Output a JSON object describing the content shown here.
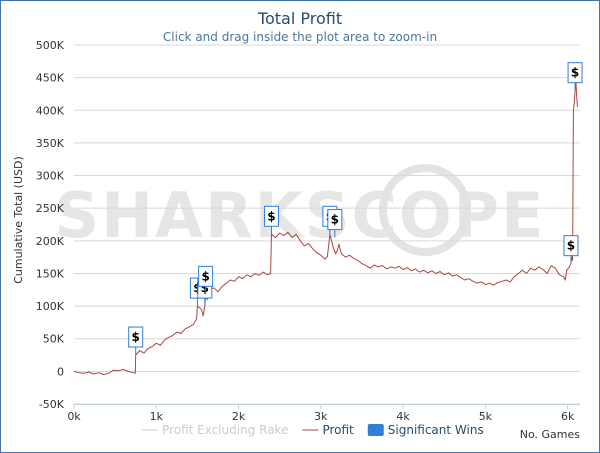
{
  "chart_data": {
    "type": "line",
    "title": "Total Profit",
    "subtitle": "Click and drag inside the plot area to zoom-in",
    "ylabel": "Cumulative Total (USD)",
    "xlabel": "No. Games",
    "watermark": "SHARKSCOPE",
    "xlim": [
      0,
      6150
    ],
    "ylim": [
      -50000,
      500000
    ],
    "x_ticks": [
      {
        "value": 0,
        "label": "0k"
      },
      {
        "value": 1000,
        "label": "1k"
      },
      {
        "value": 2000,
        "label": "2k"
      },
      {
        "value": 3000,
        "label": "3k"
      },
      {
        "value": 4000,
        "label": "4k"
      },
      {
        "value": 5000,
        "label": "5k"
      },
      {
        "value": 6000,
        "label": "6k"
      }
    ],
    "y_ticks": [
      {
        "value": -50000,
        "label": "-50K"
      },
      {
        "value": 0,
        "label": "0"
      },
      {
        "value": 50000,
        "label": "50K"
      },
      {
        "value": 100000,
        "label": "100K"
      },
      {
        "value": 150000,
        "label": "150K"
      },
      {
        "value": 200000,
        "label": "200K"
      },
      {
        "value": 250000,
        "label": "250K"
      },
      {
        "value": 300000,
        "label": "300K"
      },
      {
        "value": 350000,
        "label": "350K"
      },
      {
        "value": 400000,
        "label": "400K"
      },
      {
        "value": 450000,
        "label": "450K"
      },
      {
        "value": 500000,
        "label": "500K"
      }
    ],
    "legend": [
      {
        "name": "Profit Excluding Rake",
        "symbol": "line",
        "color": "#cccccc",
        "text_color": "#cccccc"
      },
      {
        "name": "Profit",
        "symbol": "line",
        "color": "#aa4643",
        "text_color": "#274b6d"
      },
      {
        "name": "Significant Wins",
        "symbol": "box",
        "color": "#2f7ed8",
        "text_color": "#274b6d"
      }
    ],
    "series": [
      {
        "name": "Profit",
        "color": "#aa4643",
        "points": [
          [
            0,
            0
          ],
          [
            60,
            -2000
          ],
          [
            120,
            -3000
          ],
          [
            180,
            -1000
          ],
          [
            240,
            -4000
          ],
          [
            300,
            -2000
          ],
          [
            360,
            -5000
          ],
          [
            420,
            -3000
          ],
          [
            480,
            2000
          ],
          [
            540,
            1000
          ],
          [
            600,
            3000
          ],
          [
            660,
            0
          ],
          [
            720,
            -2000
          ],
          [
            745,
            -3000
          ],
          [
            750,
            25000
          ],
          [
            800,
            32000
          ],
          [
            850,
            28000
          ],
          [
            900,
            35000
          ],
          [
            950,
            38000
          ],
          [
            1000,
            43000
          ],
          [
            1050,
            40000
          ],
          [
            1100,
            48000
          ],
          [
            1150,
            52000
          ],
          [
            1200,
            55000
          ],
          [
            1250,
            60000
          ],
          [
            1300,
            58000
          ],
          [
            1350,
            65000
          ],
          [
            1400,
            68000
          ],
          [
            1450,
            72000
          ],
          [
            1490,
            80000
          ],
          [
            1500,
            100000
          ],
          [
            1550,
            95000
          ],
          [
            1570,
            85000
          ],
          [
            1590,
            100000
          ],
          [
            1600,
            118000
          ],
          [
            1620,
            110000
          ],
          [
            1650,
            125000
          ],
          [
            1700,
            128000
          ],
          [
            1750,
            122000
          ],
          [
            1800,
            130000
          ],
          [
            1850,
            135000
          ],
          [
            1900,
            140000
          ],
          [
            1950,
            138000
          ],
          [
            2000,
            145000
          ],
          [
            2050,
            142000
          ],
          [
            2100,
            148000
          ],
          [
            2150,
            145000
          ],
          [
            2200,
            150000
          ],
          [
            2250,
            147000
          ],
          [
            2300,
            152000
          ],
          [
            2350,
            148000
          ],
          [
            2390,
            150000
          ],
          [
            2400,
            210000
          ],
          [
            2450,
            205000
          ],
          [
            2500,
            212000
          ],
          [
            2550,
            208000
          ],
          [
            2600,
            213000
          ],
          [
            2650,
            205000
          ],
          [
            2700,
            210000
          ],
          [
            2750,
            200000
          ],
          [
            2800,
            192000
          ],
          [
            2850,
            196000
          ],
          [
            2900,
            188000
          ],
          [
            2950,
            182000
          ],
          [
            3000,
            178000
          ],
          [
            3050,
            172000
          ],
          [
            3080,
            176000
          ],
          [
            3110,
            210000
          ],
          [
            3150,
            190000
          ],
          [
            3180,
            180000
          ],
          [
            3200,
            185000
          ],
          [
            3220,
            195000
          ],
          [
            3250,
            180000
          ],
          [
            3300,
            175000
          ],
          [
            3350,
            178000
          ],
          [
            3400,
            173000
          ],
          [
            3450,
            170000
          ],
          [
            3500,
            165000
          ],
          [
            3550,
            162000
          ],
          [
            3600,
            158000
          ],
          [
            3650,
            163000
          ],
          [
            3700,
            160000
          ],
          [
            3750,
            162000
          ],
          [
            3800,
            157000
          ],
          [
            3850,
            160000
          ],
          [
            3900,
            158000
          ],
          [
            3950,
            161000
          ],
          [
            4000,
            156000
          ],
          [
            4050,
            159000
          ],
          [
            4100,
            154000
          ],
          [
            4150,
            157000
          ],
          [
            4200,
            152000
          ],
          [
            4250,
            155000
          ],
          [
            4300,
            151000
          ],
          [
            4350,
            154000
          ],
          [
            4400,
            150000
          ],
          [
            4450,
            153000
          ],
          [
            4500,
            148000
          ],
          [
            4550,
            151000
          ],
          [
            4600,
            146000
          ],
          [
            4650,
            148000
          ],
          [
            4700,
            144000
          ],
          [
            4750,
            140000
          ],
          [
            4800,
            142000
          ],
          [
            4850,
            138000
          ],
          [
            4900,
            135000
          ],
          [
            4950,
            137000
          ],
          [
            5000,
            133000
          ],
          [
            5050,
            135000
          ],
          [
            5100,
            132000
          ],
          [
            5150,
            136000
          ],
          [
            5200,
            138000
          ],
          [
            5250,
            140000
          ],
          [
            5300,
            137000
          ],
          [
            5350,
            145000
          ],
          [
            5400,
            150000
          ],
          [
            5450,
            155000
          ],
          [
            5500,
            150000
          ],
          [
            5550,
            158000
          ],
          [
            5600,
            155000
          ],
          [
            5650,
            160000
          ],
          [
            5700,
            156000
          ],
          [
            5750,
            150000
          ],
          [
            5800,
            162000
          ],
          [
            5850,
            158000
          ],
          [
            5900,
            148000
          ],
          [
            5950,
            145000
          ],
          [
            5970,
            140000
          ],
          [
            5990,
            155000
          ],
          [
            6020,
            160000
          ],
          [
            6040,
            165000
          ],
          [
            6050,
            175000
          ],
          [
            6060,
            170000
          ],
          [
            6070,
            400000
          ],
          [
            6080,
            410000
          ],
          [
            6090,
            430000
          ],
          [
            6100,
            445000
          ],
          [
            6110,
            420000
          ],
          [
            6120,
            405000
          ]
        ]
      }
    ],
    "significant_wins": [
      {
        "x": 750,
        "y": 25000,
        "label": "$"
      },
      {
        "x": 1500,
        "y": 100000,
        "label": "$"
      },
      {
        "x": 1590,
        "y": 100000,
        "label": "$"
      },
      {
        "x": 1600,
        "y": 118000,
        "label": "$"
      },
      {
        "x": 2400,
        "y": 210000,
        "label": "$"
      },
      {
        "x": 3110,
        "y": 210000,
        "label": "$"
      },
      {
        "x": 3170,
        "y": 205000,
        "label": "$"
      },
      {
        "x": 6040,
        "y": 165000,
        "label": "$"
      },
      {
        "x": 6090,
        "y": 430000,
        "label": "$"
      }
    ]
  }
}
